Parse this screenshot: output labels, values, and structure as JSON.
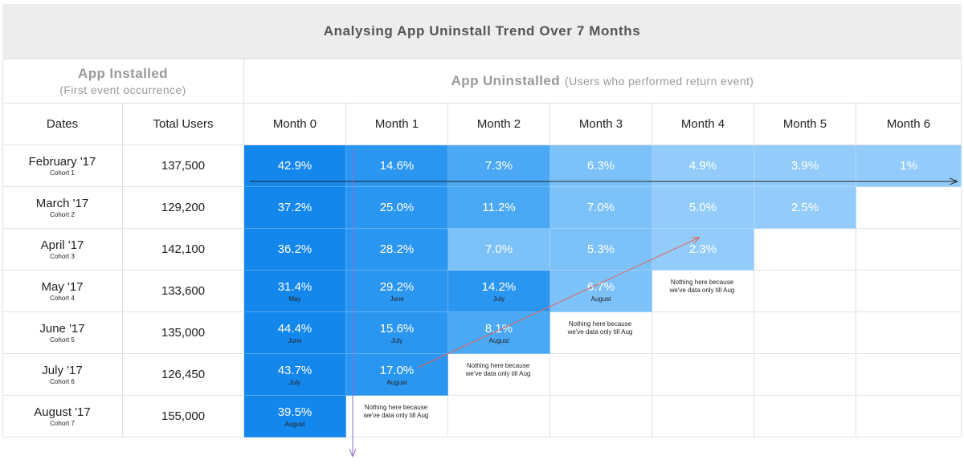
{
  "title": "Analysing App Uninstall Trend Over 7 Months",
  "group_headers": {
    "installed_main": "App Installed",
    "installed_sub": "(First event occurrence)",
    "uninstalled_main": "App Uninstalled",
    "uninstalled_sub": "(Users who performed return event)"
  },
  "columns": {
    "dates": "Dates",
    "total_users": "Total Users",
    "months": [
      "Month 0",
      "Month 1",
      "Month 2",
      "Month 3",
      "Month 4",
      "Month 5",
      "Month 6"
    ]
  },
  "rows": [
    {
      "date": "February '17",
      "cohort": "Cohort 1",
      "users": "137,500",
      "values": [
        "42.9%",
        "14.6%",
        "7.3%",
        "6.3%",
        "4.9%",
        "3.9%",
        "1%"
      ],
      "months": [
        "",
        "",
        "",
        "",
        "",
        "",
        ""
      ],
      "note": ""
    },
    {
      "date": "March '17",
      "cohort": "Cohort 2",
      "users": "129,200",
      "values": [
        "37.2%",
        "25.0%",
        "11.2%",
        "7.0%",
        "5.0%",
        "2.5%"
      ],
      "months": [
        "",
        "",
        "",
        "",
        "",
        ""
      ],
      "note": ""
    },
    {
      "date": "April '17",
      "cohort": "Cohort 3",
      "users": "142,100",
      "values": [
        "36.2%",
        "28.2%",
        "7.0%",
        "5.3%",
        "2.3%"
      ],
      "months": [
        "",
        "",
        "",
        "",
        ""
      ],
      "note": ""
    },
    {
      "date": "May '17",
      "cohort": "Cohort 4",
      "users": "133,600",
      "values": [
        "31.4%",
        "29.2%",
        "14.2%",
        "6.7%"
      ],
      "months": [
        "May",
        "June",
        "July",
        "August"
      ],
      "note": "Nothing here because we've data only till Aug"
    },
    {
      "date": "June '17",
      "cohort": "Cohort 5",
      "users": "135,000",
      "values": [
        "44.4%",
        "15.6%",
        "8.1%"
      ],
      "months": [
        "June",
        "July",
        "August"
      ],
      "note": "Nothing here because we've data only till Aug"
    },
    {
      "date": "July '17",
      "cohort": "Cohort 6",
      "users": "126,450",
      "values": [
        "43.7%",
        "17.0%"
      ],
      "months": [
        "July",
        "August"
      ],
      "note": "Nothing here because we've data only till Aug"
    },
    {
      "date": "August '17",
      "cohort": "Cohort 7",
      "users": "155,000",
      "values": [
        "39.5%"
      ],
      "months": [
        "August"
      ],
      "note": "Nothing here because we've data only till Aug"
    }
  ],
  "colors": {
    "title_bg": "#ededed",
    "grid_line": "#e2e2e2",
    "month0": "#1487ec",
    "month1": "#2b96f0",
    "mid": "#4aa8f4",
    "light": "#7cc1f8",
    "lighter": "#93ccfa",
    "horizontal_arrow": "#222222",
    "vertical_arrow": "#8a6fc8",
    "diagonal_arrow": "#e2655a"
  },
  "chart_data": {
    "type": "heatmap",
    "title": "Analysing App Uninstall Trend Over 7 Months",
    "row_header": "Dates",
    "x": [
      "Month 0",
      "Month 1",
      "Month 2",
      "Month 3",
      "Month 4",
      "Month 5",
      "Month 6"
    ],
    "y": [
      "February '17",
      "March '17",
      "April '17",
      "May '17",
      "June '17",
      "July '17",
      "August '17"
    ],
    "total_users": [
      137500,
      129200,
      142100,
      133600,
      135000,
      126450,
      155000
    ],
    "values": [
      [
        42.9,
        14.6,
        7.3,
        6.3,
        4.9,
        3.9,
        1
      ],
      [
        37.2,
        25.0,
        11.2,
        7.0,
        5.0,
        2.5,
        null
      ],
      [
        36.2,
        28.2,
        7.0,
        5.3,
        2.3,
        null,
        null
      ],
      [
        31.4,
        29.2,
        14.2,
        6.7,
        null,
        null,
        null
      ],
      [
        44.4,
        15.6,
        8.1,
        null,
        null,
        null,
        null
      ],
      [
        43.7,
        17.0,
        null,
        null,
        null,
        null,
        null
      ],
      [
        39.5,
        null,
        null,
        null,
        null,
        null,
        null
      ]
    ],
    "unit": "%"
  }
}
